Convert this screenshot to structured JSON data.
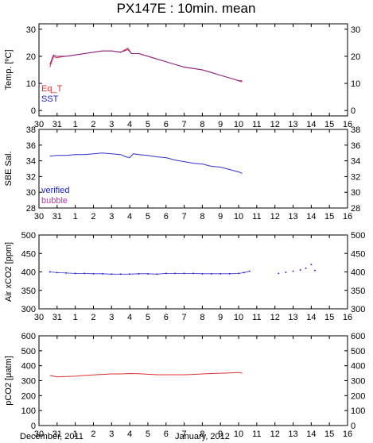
{
  "title": "PX147E : 10min. mean",
  "x_labels": [
    "30",
    "31",
    "1",
    "2",
    "3",
    "4",
    "5",
    "6",
    "7",
    "8",
    "9",
    "10",
    "11",
    "12",
    "13",
    "14",
    "15",
    "16"
  ],
  "footer": {
    "left": "December, 2011",
    "right": "January, 2012"
  },
  "colors": {
    "red": "#e03030",
    "blue": "#3030d0",
    "purple": "#8a2090",
    "magenta": "#c030c0",
    "blue_legend": "#2020c0"
  },
  "chart_data": [
    {
      "type": "line",
      "ylabel": "Temp. [ºC]",
      "ylim": [
        -2,
        32
      ],
      "yticks": [
        0,
        10,
        20,
        30
      ],
      "legend": [
        "Eq_T",
        "SST"
      ],
      "series": [
        {
          "name": "Eq_T",
          "x": [
            0.6,
            0.8,
            0.95,
            1.5,
            2,
            2.5,
            3,
            3.5,
            4,
            4.5,
            4.9,
            5.1,
            5.5,
            6,
            6.5,
            7,
            7.5,
            8,
            8.5,
            9,
            9.5,
            10,
            10.5,
            11,
            11.2
          ],
          "values": [
            16,
            20,
            19.5,
            20,
            20.5,
            21,
            21.5,
            22,
            22,
            21.5,
            23,
            21,
            21,
            20,
            19,
            18,
            17,
            16,
            15.5,
            15,
            14,
            13,
            12,
            11,
            10.5
          ]
        },
        {
          "name": "SST",
          "x": [
            0.6,
            0.8,
            0.95,
            1.5,
            2,
            2.5,
            3,
            3.5,
            4,
            4.5,
            4.9,
            5.1,
            5.5,
            6,
            6.5,
            7,
            7.5,
            8,
            8.5,
            9,
            9.5,
            10,
            10.5,
            11,
            11.2
          ],
          "values": [
            17,
            20.5,
            20,
            20,
            20.5,
            21,
            21.5,
            22,
            22,
            21.5,
            22.5,
            21,
            21,
            20,
            19,
            18,
            17,
            16,
            15.5,
            15,
            14,
            13,
            12,
            11,
            11
          ]
        }
      ]
    },
    {
      "type": "line",
      "ylabel": "SBE Sal.",
      "ylim": [
        28,
        38
      ],
      "yticks": [
        28,
        30,
        32,
        34,
        36,
        38
      ],
      "legend": [
        "verified",
        "bubble"
      ],
      "series": [
        {
          "name": "verified",
          "x": [
            0.6,
            1,
            1.5,
            2,
            2.5,
            3,
            3.5,
            4,
            4.5,
            4.8,
            5,
            5.2,
            5.5,
            6,
            6.5,
            7,
            7.5,
            8,
            8.5,
            9,
            9.5,
            10,
            10.5,
            11,
            11.2
          ],
          "values": [
            34.6,
            34.7,
            34.7,
            34.8,
            34.8,
            34.9,
            35,
            34.9,
            34.8,
            34.5,
            34.4,
            34.9,
            34.8,
            34.7,
            34.5,
            34.4,
            34.1,
            33.9,
            33.7,
            33.6,
            33.3,
            33.2,
            32.9,
            32.6,
            32.4
          ]
        }
      ]
    },
    {
      "type": "scatter",
      "ylabel": "Air xCO2 [ppm]",
      "ylim": [
        300,
        500
      ],
      "yticks": [
        300,
        350,
        400,
        450,
        500
      ],
      "series": [
        {
          "name": "",
          "x": [
            0.6,
            1,
            1.5,
            2,
            2.5,
            3,
            3.5,
            4,
            4.5,
            5,
            5.5,
            6,
            6.5,
            7,
            7.5,
            8,
            8.5,
            9,
            9.5,
            10,
            10.5,
            11,
            11.3,
            11.6,
            13.2,
            13.6,
            14,
            14.4,
            14.7,
            15,
            15.2
          ],
          "values": [
            400,
            398,
            397,
            396,
            396,
            395,
            395,
            394,
            394,
            394,
            395,
            395,
            394,
            396,
            396,
            396,
            396,
            395,
            395,
            395,
            395,
            396,
            398,
            402,
            396,
            399,
            402,
            405,
            410,
            420,
            404
          ]
        }
      ]
    },
    {
      "type": "line",
      "ylabel": "pCO2 [μatm]",
      "ylim": [
        0,
        600
      ],
      "yticks": [
        0,
        100,
        200,
        300,
        400,
        500,
        600
      ],
      "series": [
        {
          "name": "",
          "x": [
            0.6,
            1,
            1.5,
            2,
            2.5,
            3,
            3.5,
            4,
            4.5,
            5,
            5.5,
            6,
            6.5,
            7,
            7.5,
            8,
            8.5,
            9,
            9.5,
            10,
            10.5,
            11,
            11.2
          ],
          "values": [
            335,
            325,
            328,
            330,
            335,
            338,
            342,
            345,
            345,
            348,
            346,
            343,
            340,
            340,
            340,
            340,
            342,
            345,
            348,
            350,
            352,
            355,
            350
          ]
        }
      ]
    }
  ]
}
